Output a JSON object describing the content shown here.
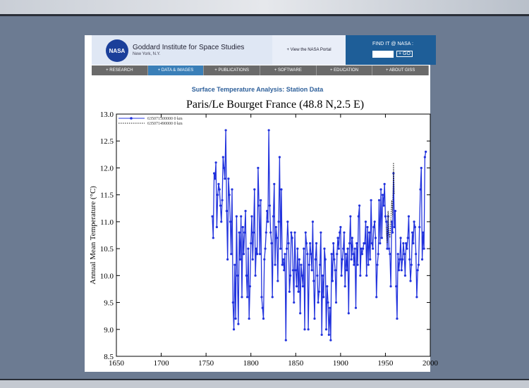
{
  "header": {
    "logo": "NASA",
    "title": "Goddard Institute for Space Studies",
    "location": "New York, N.Y.",
    "portal_link": "+ View the NASA Portal",
    "search_label": "FIND IT @ NASA :",
    "search_button": "+ GO"
  },
  "nav": [
    "+ RESEARCH",
    "+ DATA & IMAGES",
    "+ PUBLICATIONS",
    "+ SOFTWARE",
    "+ EDUCATION",
    "+ ABOUT GISS"
  ],
  "page_subtitle": "Surface Temperature Analysis: Station Data",
  "chart_data": {
    "type": "line",
    "title": "Paris/Le Bourget France (48.8 N,2.5 E)",
    "ylabel": "Annual Mean Temperature (°C)",
    "xlim": [
      1650,
      2000
    ],
    "xticks": [
      1650,
      1700,
      1750,
      1800,
      1850,
      1900,
      1950,
      2000
    ],
    "ylim": [
      8.5,
      13.0
    ],
    "yticks": [
      8.5,
      {
        "value": 9,
        "label": "9.0"
      },
      9.5,
      {
        "value": 10,
        "label": "10.0"
      },
      10.5,
      {
        "value": 11,
        "label": "11.0"
      },
      11.5,
      {
        "value": 12,
        "label": "12.0"
      },
      12.5,
      {
        "value": 13,
        "label": "13.0"
      }
    ],
    "legend": "upper left",
    "series": [
      {
        "name": "635071500000 0 km",
        "color": "#2233dd",
        "style": "solid",
        "markers": true,
        "x": [
          1757,
          1758,
          1759,
          1760,
          1761,
          1762,
          1763,
          1764,
          1765,
          1766,
          1767,
          1768,
          1769,
          1770,
          1771,
          1772,
          1773,
          1774,
          1775,
          1776,
          1777,
          1778,
          1779,
          1780,
          1781,
          1782,
          1783,
          1784,
          1785,
          1786,
          1787,
          1788,
          1789,
          1790,
          1791,
          1792,
          1793,
          1794,
          1795,
          1796,
          1797,
          1798,
          1799,
          1800,
          1801,
          1802,
          1803,
          1804,
          1805,
          1806,
          1807,
          1808,
          1809,
          1810,
          1811,
          1812,
          1813,
          1814,
          1815,
          1816,
          1817,
          1818,
          1819,
          1820,
          1821,
          1822,
          1823,
          1824,
          1825,
          1826,
          1827,
          1828,
          1829,
          1830,
          1831,
          1832,
          1833,
          1834,
          1835,
          1836,
          1837,
          1838,
          1839,
          1840,
          1841,
          1842,
          1843,
          1844,
          1845,
          1846,
          1847,
          1848,
          1849,
          1850,
          1851,
          1852,
          1853,
          1854,
          1855,
          1856,
          1857,
          1858,
          1859,
          1860,
          1861,
          1862,
          1863,
          1864,
          1865,
          1866,
          1867,
          1868,
          1869,
          1870,
          1871,
          1872,
          1873,
          1874,
          1875,
          1876,
          1877,
          1878,
          1879,
          1880,
          1881,
          1882,
          1883,
          1884,
          1885,
          1886,
          1887,
          1888,
          1889,
          1890,
          1891,
          1892,
          1893,
          1894,
          1895,
          1896,
          1897,
          1898,
          1899,
          1900,
          1901,
          1902,
          1903,
          1904,
          1905,
          1906,
          1907,
          1908,
          1909,
          1910,
          1911,
          1912,
          1913,
          1914,
          1915,
          1916,
          1917,
          1918,
          1919,
          1920,
          1921,
          1922,
          1923,
          1924,
          1925,
          1926,
          1927,
          1928,
          1929,
          1930,
          1931,
          1932,
          1933,
          1934,
          1935,
          1936,
          1937,
          1938,
          1939,
          1940,
          1941,
          1942,
          1943,
          1944,
          1945,
          1946,
          1947,
          1948,
          1949,
          1950,
          1951,
          1952,
          1953,
          1954,
          1955,
          1956,
          1957,
          1958,
          1959,
          1960,
          1961,
          1962,
          1963,
          1964,
          1965,
          1966,
          1967,
          1968,
          1969,
          1970,
          1971,
          1972,
          1973,
          1974,
          1975,
          1976,
          1977,
          1978,
          1979,
          1980,
          1981,
          1982,
          1983,
          1984,
          1985,
          1986,
          1987,
          1988,
          1989,
          1990,
          1991,
          1992,
          1993,
          1994,
          1995
        ],
        "values": [
          11.1,
          10.7,
          11.9,
          11.8,
          12.1,
          10.9,
          11.5,
          11.7,
          11.6,
          11.3,
          11.0,
          11.4,
          12.2,
          12.0,
          11.8,
          12.7,
          11.2,
          10.3,
          11.8,
          11.5,
          11.0,
          10.4,
          11.6,
          9.5,
          9.0,
          10.2,
          9.2,
          11.1,
          10.0,
          9.1,
          10.8,
          10.3,
          11.1,
          9.6,
          10.9,
          10.4,
          10.8,
          11.2,
          10.0,
          9.6,
          10.5,
          9.2,
          9.8,
          10.6,
          11.1,
          10.3,
          10.8,
          11.6,
          10.0,
          10.5,
          10.4,
          12.0,
          11.3,
          10.4,
          11.4,
          9.6,
          9.4,
          9.2,
          10.3,
          10.5,
          10.8,
          11.2,
          11.0,
          12.7,
          11.3,
          10.8,
          10.6,
          9.6,
          11.1,
          11.7,
          10.2,
          10.9,
          10.7,
          9.9,
          11.0,
          12.2,
          10.5,
          11.6,
          10.2,
          10.3,
          10.1,
          10.4,
          8.8,
          10.5,
          11.0,
          10.6,
          9.7,
          10.0,
          10.8,
          10.7,
          10.1,
          9.5,
          10.8,
          10.1,
          9.8,
          10.5,
          9.7,
          10.3,
          9.3,
          10.2,
          10.0,
          9.8,
          10.5,
          9.0,
          10.8,
          10.6,
          10.4,
          9.0,
          10.2,
          10.6,
          10.4,
          10.1,
          11.0,
          9.9,
          9.2,
          10.3,
          10.6,
          10.0,
          9.5,
          9.7,
          10.2,
          10.8,
          8.9,
          10.0,
          9.6,
          10.5,
          10.3,
          9.0,
          9.8,
          9.5,
          8.9,
          9.4,
          8.8,
          10.4,
          9.9,
          10.6,
          10.3,
          10.1,
          9.5,
          10.4,
          10.7,
          10.5,
          10.8,
          10.9,
          10.0,
          10.3,
          10.5,
          10.8,
          9.8,
          10.4,
          10.1,
          10.5,
          9.3,
          10.6,
          11.1,
          10.3,
          10.7,
          10.4,
          10.2,
          10.5,
          9.4,
          10.6,
          10.2,
          11.1,
          11.3,
          10.0,
          10.5,
          10.4,
          10.5,
          10.6,
          10.6,
          11.0,
          10.0,
          10.9,
          10.2,
          10.8,
          10.3,
          11.4,
          10.6,
          10.5,
          10.9,
          11.0,
          10.7,
          9.6,
          10.2,
          10.4,
          11.4,
          10.6,
          11.6,
          10.7,
          11.5,
          11.3,
          11.7,
          11.1,
          11.0,
          10.5,
          11.1,
          10.5,
          10.4,
          9.8,
          11.0,
          10.8,
          11.9,
          10.9,
          11.2,
          9.8,
          9.2,
          10.4,
          10.1,
          10.3,
          10.7,
          10.1,
          10.3,
          10.6,
          10.4,
          10.0,
          10.6,
          10.5,
          10.7,
          11.1,
          10.3,
          9.9,
          10.2,
          10.8,
          10.6,
          11.0,
          10.9,
          10.4,
          9.6,
          10.1,
          10.2,
          10.9,
          11.6,
          12.0,
          10.3,
          10.8,
          10.5,
          12.2,
          12.3
        ]
      },
      {
        "name": "635071490000 0 km",
        "color": "#222222",
        "style": "dotted",
        "markers": false,
        "x": [
          1951,
          1952,
          1953,
          1954,
          1955,
          1956,
          1957,
          1958,
          1959,
          1960
        ],
        "values": [
          10.9,
          10.6,
          11.2,
          10.8,
          10.7,
          11.0,
          11.4,
          11.1,
          12.1,
          11.5
        ]
      }
    ]
  }
}
